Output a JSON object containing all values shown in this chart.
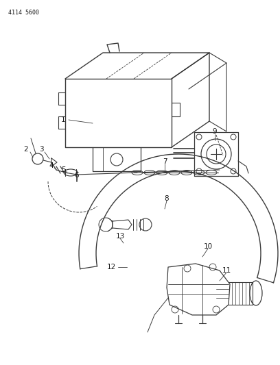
{
  "title_code": "4114 5600",
  "bg_color": "#ffffff",
  "line_color": "#3a3a3a",
  "text_color": "#1a1a1a",
  "fig_width": 4.08,
  "fig_height": 5.33,
  "dpi": 100
}
